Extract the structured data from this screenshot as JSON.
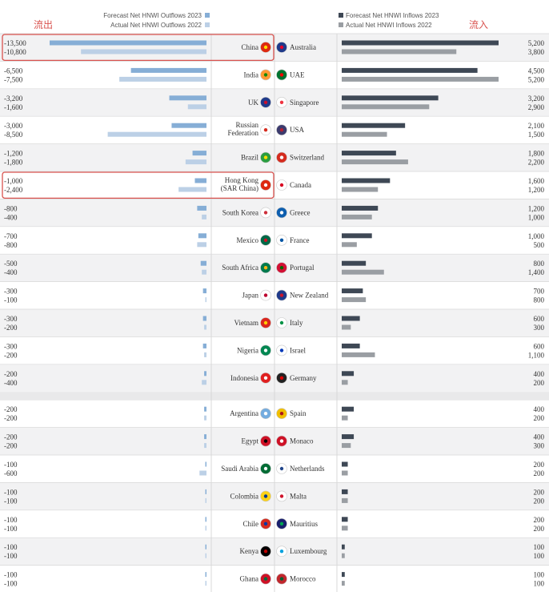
{
  "annotations": {
    "outflow_label": "流出",
    "inflow_label": "流入"
  },
  "legend": {
    "outflow_forecast": "Forecast Net HNWI Outflows 2023",
    "outflow_actual": "Actual Net HNWI Outflows 2022",
    "inflow_forecast": "Forecast Net HNWI Inflows 2023",
    "inflow_actual": "Actual Net HNWI Inflows 2022"
  },
  "colors": {
    "outflow_forecast": "#86aed6",
    "outflow_actual": "#bcd0e6",
    "inflow_forecast": "#3e4855",
    "inflow_actual": "#9a9ea3",
    "highlight_box": "#d9534f",
    "row_alt": "#f2f2f3",
    "row": "#ffffff",
    "divider": "#d8d8d8"
  },
  "chart_data": {
    "type": "bar",
    "outflows": {
      "series": [
        {
          "name": "Forecast Net HNWI Outflows 2023",
          "values": [
            -13500,
            -6500,
            -3200,
            -3000,
            -1200,
            -1000,
            -800,
            -700,
            -500,
            -300,
            -300,
            -300,
            -200,
            -200,
            -200,
            -100,
            -100,
            -100,
            -100,
            -100
          ]
        },
        {
          "name": "Actual Net HNWI Outflows 2022",
          "values": [
            -10800,
            -7500,
            -1600,
            -8500,
            -1800,
            -2400,
            -400,
            -800,
            -400,
            -100,
            -200,
            -200,
            -400,
            -200,
            -200,
            -600,
            -100,
            -100,
            -100,
            -100
          ]
        }
      ],
      "value_labels_2023": [
        "-13,500",
        "-6,500",
        "-3,200",
        "-3,000",
        "-1,200",
        "-1,000",
        "-800",
        "-700",
        "-500",
        "-300",
        "-300",
        "-300",
        "-200",
        "-200",
        "-200",
        "-100",
        "-100",
        "-100",
        "-100",
        "-100"
      ],
      "value_labels_2022": [
        "-10,800",
        "-7,500",
        "-1,600",
        "-8,500",
        "-1,800",
        "-2,400",
        "-400",
        "-800",
        "-400",
        "-100",
        "-200",
        "-200",
        "-400",
        "-200",
        "-200",
        "-600",
        "-100",
        "-100",
        "-100",
        "-100"
      ],
      "countries": [
        {
          "name": [
            "China"
          ],
          "flag": "cn"
        },
        {
          "name": [
            "India"
          ],
          "flag": "in"
        },
        {
          "name": [
            "UK"
          ],
          "flag": "uk"
        },
        {
          "name": [
            "Russian",
            "Federation"
          ],
          "flag": "ru"
        },
        {
          "name": [
            "Brazil"
          ],
          "flag": "br"
        },
        {
          "name": [
            "Hong Kong",
            "(SAR China)"
          ],
          "flag": "hk"
        },
        {
          "name": [
            "South Korea"
          ],
          "flag": "kr"
        },
        {
          "name": [
            "Mexico"
          ],
          "flag": "mx"
        },
        {
          "name": [
            "South Africa"
          ],
          "flag": "za"
        },
        {
          "name": [
            "Japan"
          ],
          "flag": "jp"
        },
        {
          "name": [
            "Vietnam"
          ],
          "flag": "vn"
        },
        {
          "name": [
            "Nigeria"
          ],
          "flag": "ng"
        },
        {
          "name": [
            "Indonesia"
          ],
          "flag": "id"
        },
        {
          "name": [
            "Argentina"
          ],
          "flag": "ar"
        },
        {
          "name": [
            "Egypt"
          ],
          "flag": "eg"
        },
        {
          "name": [
            "Saudi Arabia"
          ],
          "flag": "sa"
        },
        {
          "name": [
            "Colombia"
          ],
          "flag": "co"
        },
        {
          "name": [
            "Chile"
          ],
          "flag": "cl"
        },
        {
          "name": [
            "Kenya"
          ],
          "flag": "ke"
        },
        {
          "name": [
            "Ghana"
          ],
          "flag": "gh"
        }
      ]
    },
    "inflows": {
      "series": [
        {
          "name": "Forecast Net HNWI Inflows 2023",
          "values": [
            5200,
            4500,
            3200,
            2100,
            1800,
            1600,
            1200,
            1000,
            800,
            700,
            600,
            600,
            400,
            400,
            400,
            200,
            200,
            200,
            100,
            100
          ]
        },
        {
          "name": "Actual Net HNWI Inflows 2022",
          "values": [
            3800,
            5200,
            2900,
            1500,
            2200,
            1200,
            1000,
            500,
            1400,
            800,
            300,
            1100,
            200,
            200,
            300,
            200,
            200,
            200,
            100,
            100
          ]
        }
      ],
      "value_labels_2023": [
        "5,200",
        "4,500",
        "3,200",
        "2,100",
        "1,800",
        "1,600",
        "1,200",
        "1,000",
        "800",
        "700",
        "600",
        "600",
        "400",
        "400",
        "400",
        "200",
        "200",
        "200",
        "100",
        "100"
      ],
      "value_labels_2022": [
        "3,800",
        "5,200",
        "2,900",
        "1,500",
        "2,200",
        "1,200",
        "1,000",
        "500",
        "1,400",
        "800",
        "300",
        "1,100",
        "200",
        "200",
        "300",
        "200",
        "200",
        "200",
        "100",
        "100"
      ],
      "countries": [
        {
          "name": [
            "Australia"
          ],
          "flag": "au"
        },
        {
          "name": [
            "UAE"
          ],
          "flag": "ae"
        },
        {
          "name": [
            "Singapore"
          ],
          "flag": "sg"
        },
        {
          "name": [
            "USA"
          ],
          "flag": "us"
        },
        {
          "name": [
            "Switzerland"
          ],
          "flag": "ch"
        },
        {
          "name": [
            "Canada"
          ],
          "flag": "ca"
        },
        {
          "name": [
            "Greece"
          ],
          "flag": "gr"
        },
        {
          "name": [
            "France"
          ],
          "flag": "fr"
        },
        {
          "name": [
            "Portugal"
          ],
          "flag": "pt"
        },
        {
          "name": [
            "New Zealand"
          ],
          "flag": "nz"
        },
        {
          "name": [
            "Italy"
          ],
          "flag": "it"
        },
        {
          "name": [
            "Israel"
          ],
          "flag": "il"
        },
        {
          "name": [
            "Germany"
          ],
          "flag": "de"
        },
        {
          "name": [
            "Spain"
          ],
          "flag": "es"
        },
        {
          "name": [
            "Monaco"
          ],
          "flag": "mc"
        },
        {
          "name": [
            "Netherlands"
          ],
          "flag": "nl"
        },
        {
          "name": [
            "Malta"
          ],
          "flag": "mt"
        },
        {
          "name": [
            "Mauritius"
          ],
          "flag": "mu"
        },
        {
          "name": [
            "Luxembourg"
          ],
          "flag": "lu"
        },
        {
          "name": [
            "Morocco"
          ],
          "flag": "ma"
        }
      ]
    },
    "highlighted_outflow_rows": [
      "China",
      "Hong Kong (SAR China)"
    ],
    "grid": false,
    "legend_position": "top"
  }
}
